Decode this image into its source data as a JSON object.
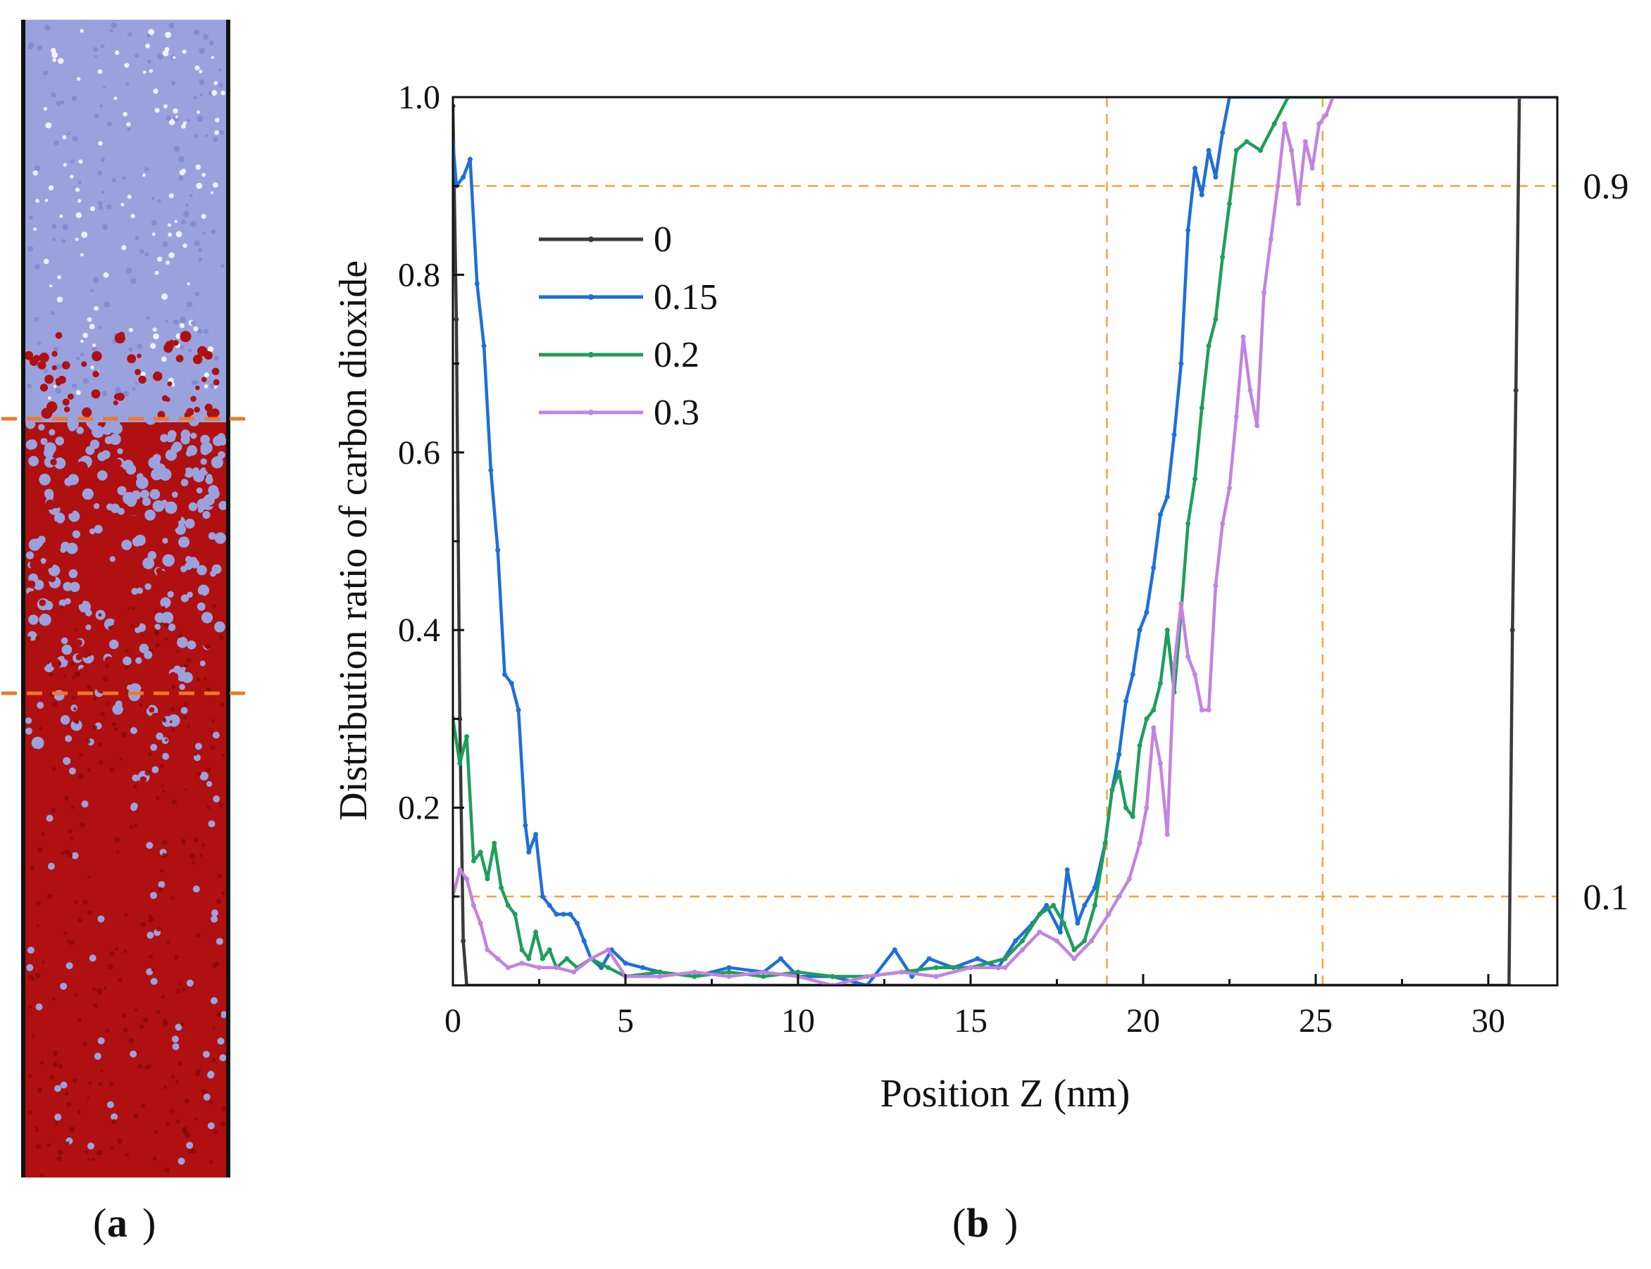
{
  "panel_labels": {
    "a": "a",
    "b": "b"
  },
  "colors": {
    "gas": "#9aa2de",
    "gas_dark": "#7f88cf",
    "liquid": "#b01010",
    "liquid_dark": "#8a0808",
    "boundary_dash": "#f07828",
    "guide_dash": "#f5a33c",
    "axis": "#111111"
  },
  "chart_data": {
    "type": "line",
    "xlabel": "Position Z (nm)",
    "ylabel": "Distribution ratio of carbon dioxide",
    "xlim": [
      0,
      32
    ],
    "ylim": [
      0,
      1.0
    ],
    "x_ticks": [
      "0",
      "5",
      "10",
      "15",
      "20",
      "25",
      "30"
    ],
    "y_ticks": [
      "0.2",
      "0.4",
      "0.6",
      "0.8",
      "1.0"
    ],
    "reference_lines": {
      "horizontal": [
        {
          "y": 0.9,
          "label": "0.9"
        },
        {
          "y": 0.1,
          "label": "0.1"
        }
      ],
      "vertical": [
        {
          "x": 18.95
        },
        {
          "x": 25.2
        }
      ]
    },
    "legend_position": "upper-left",
    "series": [
      {
        "name": "0",
        "color": "#3a3a3a",
        "points": [
          [
            0,
            0.99
          ],
          [
            0.1,
            0.75
          ],
          [
            0.2,
            0.3
          ],
          [
            0.3,
            0.05
          ],
          [
            0.4,
            0.0
          ],
          [
            30.6,
            0.0
          ],
          [
            30.7,
            0.4
          ],
          [
            30.8,
            0.67
          ],
          [
            30.9,
            1.0
          ],
          [
            32,
            1.0
          ]
        ]
      },
      {
        "name": "0.15",
        "color": "#1e6fd9",
        "points": [
          [
            0,
            0.95
          ],
          [
            0.1,
            0.9
          ],
          [
            0.3,
            0.91
          ],
          [
            0.5,
            0.93
          ],
          [
            0.7,
            0.79
          ],
          [
            0.9,
            0.72
          ],
          [
            1.1,
            0.58
          ],
          [
            1.3,
            0.49
          ],
          [
            1.5,
            0.35
          ],
          [
            1.7,
            0.34
          ],
          [
            1.9,
            0.31
          ],
          [
            2.1,
            0.18
          ],
          [
            2.2,
            0.15
          ],
          [
            2.4,
            0.17
          ],
          [
            2.6,
            0.1
          ],
          [
            2.8,
            0.09
          ],
          [
            3.0,
            0.08
          ],
          [
            3.2,
            0.08
          ],
          [
            3.4,
            0.08
          ],
          [
            3.6,
            0.07
          ],
          [
            3.8,
            0.05
          ],
          [
            4.0,
            0.03
          ],
          [
            4.3,
            0.02
          ],
          [
            4.6,
            0.04
          ],
          [
            5.0,
            0.025
          ],
          [
            5.5,
            0.02
          ],
          [
            6.0,
            0.015
          ],
          [
            7.0,
            0.01
          ],
          [
            8.0,
            0.02
          ],
          [
            9.0,
            0.015
          ],
          [
            9.5,
            0.03
          ],
          [
            10.0,
            0.01
          ],
          [
            11.0,
            0.01
          ],
          [
            12.0,
            0.0
          ],
          [
            12.8,
            0.04
          ],
          [
            13.3,
            0.01
          ],
          [
            13.8,
            0.03
          ],
          [
            14.5,
            0.02
          ],
          [
            15.2,
            0.03
          ],
          [
            15.8,
            0.02
          ],
          [
            16.3,
            0.05
          ],
          [
            16.8,
            0.07
          ],
          [
            17.2,
            0.09
          ],
          [
            17.6,
            0.06
          ],
          [
            17.8,
            0.13
          ],
          [
            18.1,
            0.07
          ],
          [
            18.3,
            0.09
          ],
          [
            18.6,
            0.11
          ],
          [
            18.9,
            0.16
          ],
          [
            19.1,
            0.22
          ],
          [
            19.3,
            0.26
          ],
          [
            19.5,
            0.32
          ],
          [
            19.7,
            0.35
          ],
          [
            19.9,
            0.4
          ],
          [
            20.1,
            0.42
          ],
          [
            20.3,
            0.47
          ],
          [
            20.5,
            0.53
          ],
          [
            20.7,
            0.55
          ],
          [
            20.9,
            0.62
          ],
          [
            21.1,
            0.7
          ],
          [
            21.3,
            0.85
          ],
          [
            21.5,
            0.92
          ],
          [
            21.7,
            0.89
          ],
          [
            21.9,
            0.94
          ],
          [
            22.1,
            0.91
          ],
          [
            22.3,
            0.96
          ],
          [
            22.5,
            1.0
          ],
          [
            32,
            1.0
          ]
        ]
      },
      {
        "name": "0.2",
        "color": "#1f9e5a",
        "points": [
          [
            0,
            0.3
          ],
          [
            0.2,
            0.25
          ],
          [
            0.4,
            0.28
          ],
          [
            0.6,
            0.14
          ],
          [
            0.8,
            0.15
          ],
          [
            1.0,
            0.12
          ],
          [
            1.2,
            0.16
          ],
          [
            1.4,
            0.11
          ],
          [
            1.6,
            0.09
          ],
          [
            1.8,
            0.08
          ],
          [
            2.0,
            0.04
          ],
          [
            2.2,
            0.03
          ],
          [
            2.4,
            0.06
          ],
          [
            2.6,
            0.03
          ],
          [
            2.8,
            0.04
          ],
          [
            3.0,
            0.02
          ],
          [
            3.3,
            0.03
          ],
          [
            3.6,
            0.02
          ],
          [
            4.0,
            0.03
          ],
          [
            4.5,
            0.02
          ],
          [
            5.0,
            0.01
          ],
          [
            6.0,
            0.015
          ],
          [
            7.0,
            0.01
          ],
          [
            8.0,
            0.015
          ],
          [
            9.0,
            0.01
          ],
          [
            10.0,
            0.015
          ],
          [
            11.0,
            0.01
          ],
          [
            12.0,
            0.01
          ],
          [
            13.0,
            0.015
          ],
          [
            14.0,
            0.02
          ],
          [
            15.0,
            0.02
          ],
          [
            16.0,
            0.03
          ],
          [
            16.5,
            0.05
          ],
          [
            17.0,
            0.08
          ],
          [
            17.4,
            0.09
          ],
          [
            17.7,
            0.07
          ],
          [
            18.0,
            0.04
          ],
          [
            18.3,
            0.05
          ],
          [
            18.6,
            0.09
          ],
          [
            18.9,
            0.16
          ],
          [
            19.1,
            0.22
          ],
          [
            19.3,
            0.24
          ],
          [
            19.5,
            0.2
          ],
          [
            19.7,
            0.19
          ],
          [
            19.9,
            0.27
          ],
          [
            20.1,
            0.3
          ],
          [
            20.3,
            0.31
          ],
          [
            20.5,
            0.34
          ],
          [
            20.7,
            0.4
          ],
          [
            20.9,
            0.33
          ],
          [
            21.1,
            0.42
          ],
          [
            21.3,
            0.52
          ],
          [
            21.5,
            0.57
          ],
          [
            21.7,
            0.65
          ],
          [
            21.9,
            0.72
          ],
          [
            22.1,
            0.75
          ],
          [
            22.3,
            0.82
          ],
          [
            22.5,
            0.88
          ],
          [
            22.7,
            0.94
          ],
          [
            23.0,
            0.95
          ],
          [
            23.4,
            0.94
          ],
          [
            23.8,
            0.97
          ],
          [
            24.2,
            1.0
          ],
          [
            32,
            1.0
          ]
        ]
      },
      {
        "name": "0.3",
        "color": "#c383e0",
        "points": [
          [
            0,
            0.1
          ],
          [
            0.2,
            0.13
          ],
          [
            0.4,
            0.12
          ],
          [
            0.6,
            0.09
          ],
          [
            0.8,
            0.07
          ],
          [
            1.0,
            0.04
          ],
          [
            1.3,
            0.03
          ],
          [
            1.6,
            0.02
          ],
          [
            2.0,
            0.025
          ],
          [
            2.5,
            0.02
          ],
          [
            3.0,
            0.02
          ],
          [
            3.5,
            0.015
          ],
          [
            4.0,
            0.03
          ],
          [
            4.5,
            0.04
          ],
          [
            5.0,
            0.01
          ],
          [
            6.0,
            0.01
          ],
          [
            7.0,
            0.015
          ],
          [
            8.0,
            0.01
          ],
          [
            9.0,
            0.015
          ],
          [
            10.0,
            0.01
          ],
          [
            11.0,
            0.0
          ],
          [
            12.0,
            0.01
          ],
          [
            13.0,
            0.015
          ],
          [
            14.0,
            0.01
          ],
          [
            15.0,
            0.02
          ],
          [
            16.0,
            0.02
          ],
          [
            16.5,
            0.04
          ],
          [
            17.0,
            0.06
          ],
          [
            17.5,
            0.05
          ],
          [
            18.0,
            0.03
          ],
          [
            18.5,
            0.05
          ],
          [
            19.0,
            0.08
          ],
          [
            19.3,
            0.1
          ],
          [
            19.6,
            0.12
          ],
          [
            19.9,
            0.16
          ],
          [
            20.1,
            0.2
          ],
          [
            20.3,
            0.29
          ],
          [
            20.5,
            0.25
          ],
          [
            20.7,
            0.17
          ],
          [
            20.9,
            0.36
          ],
          [
            21.1,
            0.43
          ],
          [
            21.3,
            0.37
          ],
          [
            21.5,
            0.35
          ],
          [
            21.7,
            0.31
          ],
          [
            21.9,
            0.31
          ],
          [
            22.1,
            0.45
          ],
          [
            22.3,
            0.52
          ],
          [
            22.5,
            0.56
          ],
          [
            22.7,
            0.64
          ],
          [
            22.9,
            0.73
          ],
          [
            23.1,
            0.67
          ],
          [
            23.3,
            0.63
          ],
          [
            23.5,
            0.78
          ],
          [
            23.7,
            0.84
          ],
          [
            23.9,
            0.9
          ],
          [
            24.1,
            0.97
          ],
          [
            24.3,
            0.94
          ],
          [
            24.5,
            0.88
          ],
          [
            24.7,
            0.95
          ],
          [
            24.9,
            0.92
          ],
          [
            25.1,
            0.97
          ],
          [
            25.3,
            0.98
          ],
          [
            25.5,
            1.0
          ],
          [
            32,
            1.0
          ]
        ]
      }
    ]
  }
}
